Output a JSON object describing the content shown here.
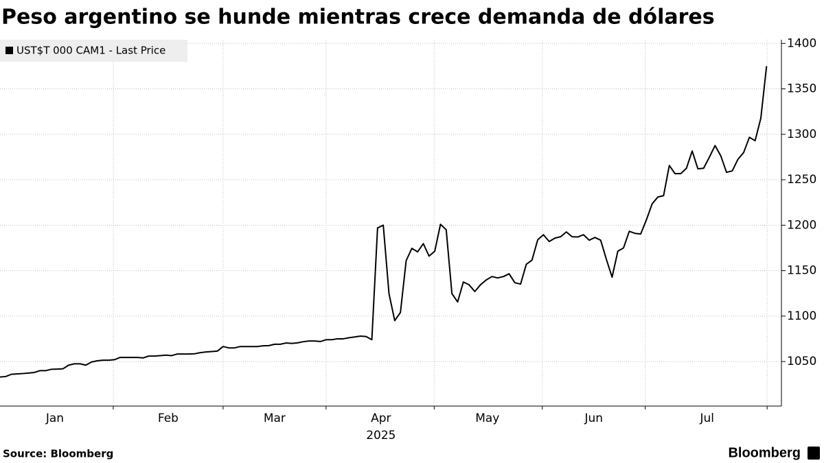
{
  "chart_data": {
    "type": "line",
    "title": "Peso argentino se hunde mientras crece demanda de dólares",
    "xlabel": "2025",
    "source": "Source:  Bloomberg",
    "brand": "Bloomberg",
    "categories": [
      null,
      null,
      null,
      null,
      null,
      null,
      null,
      null,
      null,
      null,
      null,
      null,
      null,
      null,
      null,
      null,
      null,
      null,
      null,
      null,
      null,
      null,
      null,
      null,
      null,
      null,
      null,
      null,
      null,
      null,
      null,
      null,
      null,
      null,
      null,
      null,
      null,
      null,
      null,
      null,
      null,
      null,
      null,
      null,
      null,
      null,
      null,
      null,
      null,
      null,
      null,
      null,
      null,
      null,
      null,
      null,
      null,
      null,
      null,
      null,
      null,
      null,
      null,
      null,
      null,
      null,
      null,
      null,
      null,
      null,
      null,
      null,
      null,
      null,
      null,
      null,
      null,
      null,
      null,
      null,
      null,
      null,
      null,
      null,
      null,
      null,
      null,
      null,
      null,
      null,
      null,
      null,
      null,
      null,
      null,
      null,
      null,
      null,
      null,
      null,
      null,
      null,
      null,
      null,
      null,
      null,
      null,
      null,
      null,
      null,
      null,
      null,
      null,
      null,
      null,
      null,
      null,
      null,
      null,
      null,
      null,
      null,
      null,
      null,
      null,
      null,
      null,
      null,
      null,
      null,
      null,
      null,
      null,
      null,
      null
    ],
    "series": [
      {
        "name": "UST$T 000 CAM1 - Last Price",
        "color": "#000000",
        "values": [
          1033,
          1033.5,
          1036,
          1036.4,
          1036.8,
          1037.3,
          1038,
          1040,
          1040,
          1041.5,
          1041.7,
          1042,
          1046,
          1047.5,
          1047.5,
          1046,
          1049.5,
          1050.8,
          1051.5,
          1051.5,
          1052,
          1054.5,
          1054.5,
          1054.5,
          1054.5,
          1054,
          1056,
          1056,
          1056.5,
          1057,
          1056.5,
          1058.3,
          1058.3,
          1058.3,
          1058.5,
          1059.8,
          1060.5,
          1061,
          1061.5,
          1066.5,
          1065,
          1065,
          1066.5,
          1066.5,
          1066.5,
          1066.5,
          1067.3,
          1067.5,
          1069,
          1069,
          1070.4,
          1070,
          1070.5,
          1071.8,
          1072.6,
          1072.6,
          1072,
          1074,
          1074,
          1075,
          1075,
          1076.2,
          1077,
          1078,
          1077.5,
          1074,
          1197,
          1200,
          1124.7,
          1095,
          1104,
          1161,
          1174.5,
          1170.7,
          1179.7,
          1166,
          1171.4,
          1201,
          1195,
          1124.7,
          1115.6,
          1137.5,
          1134.5,
          1127,
          1134.5,
          1139.8,
          1143.5,
          1142,
          1143.5,
          1146.5,
          1136.7,
          1135.2,
          1157,
          1161.6,
          1184,
          1189.5,
          1182,
          1185.8,
          1187.3,
          1192.6,
          1187.3,
          1187,
          1189.5,
          1183.5,
          1186.5,
          1183.5,
          1162.4,
          1142.8,
          1171.4,
          1175,
          1193.3,
          1191,
          1190.3,
          1206,
          1223.5,
          1231,
          1232.5,
          1265.7,
          1256.7,
          1256.7,
          1262.7,
          1281.6,
          1262,
          1262.7,
          1274.8,
          1287.6,
          1276.3,
          1258.2,
          1259.7,
          1272.5,
          1280,
          1296.7,
          1293,
          1317.8,
          1375
        ]
      }
    ],
    "xlim": [
      0,
      136.6
    ],
    "xticks": [
      {
        "value": 9.6,
        "label": "Jan"
      },
      {
        "value": 29.4,
        "label": "Feb"
      },
      {
        "value": 48,
        "label": "Mar"
      },
      {
        "value": 66.6,
        "label": "Apr"
      },
      {
        "value": 85.2,
        "label": "May"
      },
      {
        "value": 103.8,
        "label": "Jun"
      },
      {
        "value": 123.6,
        "label": "Jul"
      }
    ],
    "xgrid": [
      19.8,
      39,
      57,
      75.9,
      94.8,
      112.8,
      134.1
    ],
    "ylim": [
      1001,
      1404
    ],
    "yticks": [
      1050,
      1100,
      1150,
      1200,
      1250,
      1300,
      1350,
      1400
    ],
    "grid": true,
    "legend": "upper left"
  }
}
